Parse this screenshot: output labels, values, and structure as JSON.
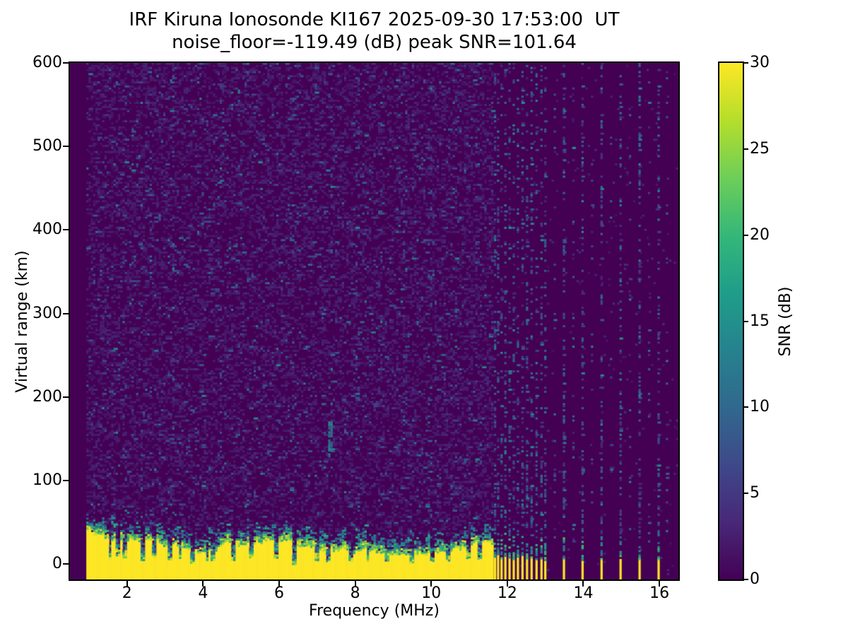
{
  "chart_data": {
    "type": "heatmap",
    "title": "IRF Kiruna Ionosonde KI167 2025-09-30 17:53:00  UT",
    "subtitle": "noise_floor=-119.49 (dB) peak SNR=101.64",
    "xlabel": "Frequency (MHz)",
    "ylabel": "Virtual range (km)",
    "xlim": [
      0.5,
      16.5
    ],
    "ylim": [
      -18.5,
      600
    ],
    "xticks": [
      2,
      4,
      6,
      8,
      10,
      12,
      14,
      16
    ],
    "yticks": [
      0,
      100,
      200,
      300,
      400,
      500,
      600
    ],
    "grid": false,
    "noise_floor_db": -119.49,
    "peak_snr_db": 101.64,
    "colorbar": {
      "label": "SNR (dB)",
      "min": 0,
      "max": 30,
      "ticks": [
        0,
        5,
        10,
        15,
        20,
        25,
        30
      ],
      "colormap": "viridis",
      "stops": [
        {
          "t": 0.0,
          "c": "#440154"
        },
        {
          "t": 0.111,
          "c": "#482878"
        },
        {
          "t": 0.222,
          "c": "#3e4989"
        },
        {
          "t": 0.333,
          "c": "#31688e"
        },
        {
          "t": 0.444,
          "c": "#26828e"
        },
        {
          "t": 0.556,
          "c": "#1f9e89"
        },
        {
          "t": 0.667,
          "c": "#35b779"
        },
        {
          "t": 0.778,
          "c": "#6ece58"
        },
        {
          "t": 0.889,
          "c": "#b5de2b"
        },
        {
          "t": 1.0,
          "c": "#fde725"
        }
      ]
    },
    "features": {
      "background_color": "#440154",
      "echo_color": "#fde725",
      "sounding_band": {
        "freq_mhz": [
          0.93,
          11.62
        ],
        "ground_echo_top_km_mean": 22,
        "ground_echo_top_km_spread": 9,
        "low_freq_wedge_until_mhz": 1.7,
        "echo_snr_db": 30,
        "transition_thickness_km": 22
      },
      "background_noise": {
        "snr_db_range": [
          0,
          6
        ],
        "coverage": 0.5
      },
      "faint_noise_columns_mhz": [
        1.9,
        2.6,
        3.15,
        4.4,
        5.15,
        6.3,
        7.35,
        8.05,
        8.65,
        9.3,
        9.95,
        10.6,
        11.15
      ],
      "noise_blob": {
        "freq_mhz": 7.35,
        "range_km": [
          130,
          172
        ],
        "snr_db": 12
      },
      "notches": [
        {
          "f": 1.52,
          "d": 0.75,
          "w": 0.05
        },
        {
          "f": 1.74,
          "d": 0.6,
          "w": 0.04
        },
        {
          "f": 1.93,
          "d": 0.7,
          "w": 0.05
        },
        {
          "f": 2.37,
          "d": 0.8,
          "w": 0.06
        },
        {
          "f": 2.7,
          "d": 0.65,
          "w": 0.05
        },
        {
          "f": 3.12,
          "d": 0.72,
          "w": 0.05
        },
        {
          "f": 3.35,
          "d": 0.6,
          "w": 0.04
        },
        {
          "f": 3.72,
          "d": 0.82,
          "w": 0.06
        },
        {
          "f": 4.08,
          "d": 0.6,
          "w": 0.04
        },
        {
          "f": 4.24,
          "d": 0.7,
          "w": 0.05
        },
        {
          "f": 4.78,
          "d": 0.75,
          "w": 0.06
        },
        {
          "f": 5.25,
          "d": 0.65,
          "w": 0.05
        },
        {
          "f": 5.9,
          "d": 0.7,
          "w": 0.05
        },
        {
          "f": 6.38,
          "d": 0.95,
          "w": 0.06
        },
        {
          "f": 6.98,
          "d": 0.7,
          "w": 0.05
        },
        {
          "f": 7.28,
          "d": 0.78,
          "w": 0.05
        },
        {
          "f": 7.87,
          "d": 0.65,
          "w": 0.05
        },
        {
          "f": 8.3,
          "d": 0.72,
          "w": 0.05
        },
        {
          "f": 8.8,
          "d": 0.6,
          "w": 0.05
        },
        {
          "f": 9.44,
          "d": 0.75,
          "w": 0.06
        },
        {
          "f": 10.0,
          "d": 0.68,
          "w": 0.05
        },
        {
          "f": 10.42,
          "d": 0.72,
          "w": 0.05
        },
        {
          "f": 10.96,
          "d": 0.65,
          "w": 0.05
        },
        {
          "f": 11.24,
          "d": 0.7,
          "w": 0.05
        }
      ],
      "rfi_columns": [
        {
          "f": 11.68,
          "s": 0.3,
          "stub": 10
        },
        {
          "f": 11.76,
          "s": 0.34,
          "stub": 13
        },
        {
          "f": 11.85,
          "s": 0.28,
          "stub": 8
        },
        {
          "f": 11.95,
          "s": 0.32,
          "stub": 11
        },
        {
          "f": 12.06,
          "s": 0.3,
          "stub": 9
        },
        {
          "f": 12.17,
          "s": 0.26,
          "stub": 7
        },
        {
          "f": 12.28,
          "s": 0.3,
          "stub": 10
        },
        {
          "f": 12.4,
          "s": 0.34,
          "stub": 12
        },
        {
          "f": 12.52,
          "s": 0.28,
          "stub": 8
        },
        {
          "f": 12.64,
          "s": 0.3,
          "stub": 9
        },
        {
          "f": 12.77,
          "s": 0.26,
          "stub": 7
        },
        {
          "f": 12.9,
          "s": 0.28,
          "stub": 8
        },
        {
          "f": 13.0,
          "s": 0.26,
          "stub": 6
        },
        {
          "f": 13.49,
          "s": 0.42,
          "stub": 8
        },
        {
          "f": 13.98,
          "s": 0.3,
          "stub": 6
        },
        {
          "f": 14.48,
          "s": 0.38,
          "stub": 7
        },
        {
          "f": 14.98,
          "s": 0.3,
          "stub": 6
        },
        {
          "f": 15.48,
          "s": 0.42,
          "stub": 7
        },
        {
          "f": 15.98,
          "s": 0.34,
          "stub": 7
        },
        {
          "f": 13.25,
          "s": 0.08,
          "stub": 0
        },
        {
          "f": 13.74,
          "s": 0.08,
          "stub": 0
        },
        {
          "f": 14.23,
          "s": 0.07,
          "stub": 0
        },
        {
          "f": 14.73,
          "s": 0.07,
          "stub": 0
        },
        {
          "f": 15.23,
          "s": 0.07,
          "stub": 0
        },
        {
          "f": 15.73,
          "s": 0.07,
          "stub": 0
        },
        {
          "f": 16.2,
          "s": 0.1,
          "stub": 0
        }
      ]
    }
  }
}
